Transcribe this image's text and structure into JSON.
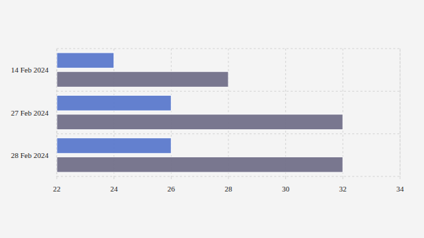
{
  "chart_data": {
    "type": "bar",
    "orientation": "horizontal",
    "categories": [
      "14 Feb 2024",
      "27 Feb 2024",
      "28 Feb 2024"
    ],
    "series": [
      {
        "color": "#5b79cc",
        "values": [
          24,
          26,
          26
        ]
      },
      {
        "color": "#727089",
        "values": [
          28,
          32,
          32
        ]
      }
    ],
    "xlim": [
      22,
      34
    ],
    "xticks": [
      22,
      24,
      26,
      28,
      30,
      32,
      34
    ],
    "grid": true
  }
}
